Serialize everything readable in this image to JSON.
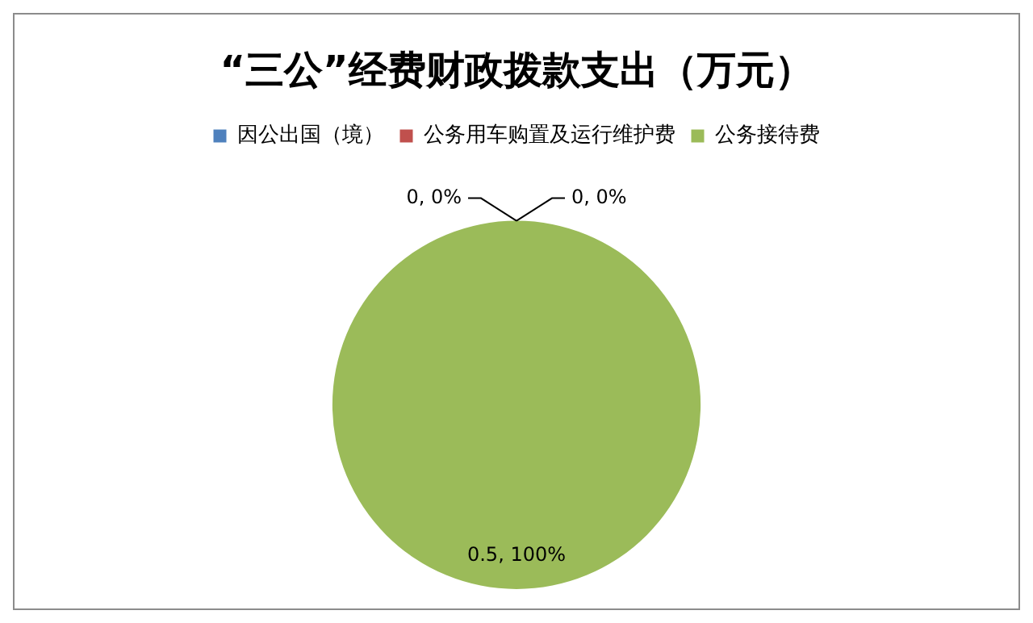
{
  "chart_data": {
    "type": "pie",
    "title": "“三公”经费财政拨款支出（万元）",
    "categories": [
      "因公出国（境）",
      "公务用车购置及运行维护费",
      "公务接待费"
    ],
    "values": [
      0,
      0,
      0.5
    ],
    "colors": [
      "#4f81bd",
      "#c0504d",
      "#9bbb59"
    ],
    "value_labels": [
      "0, 0%",
      "0, 0%",
      "0.5, 100%"
    ],
    "legend": "top"
  }
}
